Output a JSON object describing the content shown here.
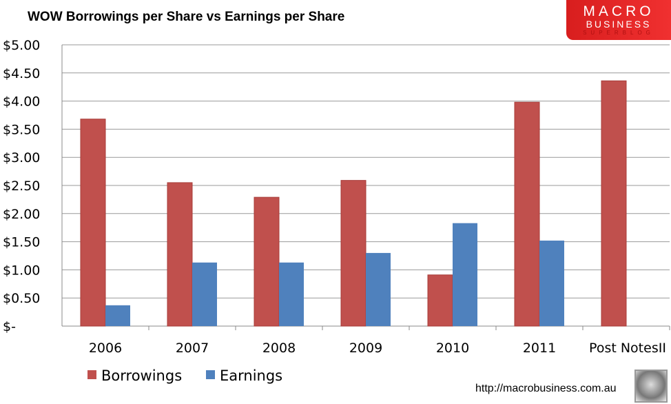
{
  "chart_data": {
    "type": "bar",
    "title": "WOW Borrowings per Share vs  Earnings per Share",
    "categories": [
      "2006",
      "2007",
      "2008",
      "2009",
      "2010",
      "2011",
      "Post NotesII"
    ],
    "series": [
      {
        "name": "Borrowings",
        "color": "#c0504d",
        "values": [
          3.68,
          2.55,
          2.29,
          2.59,
          0.91,
          3.98,
          4.36
        ]
      },
      {
        "name": "Earnings",
        "color": "#4f81bd",
        "values": [
          0.37,
          1.13,
          1.13,
          1.3,
          1.83,
          1.52,
          null
        ]
      }
    ],
    "ylim": [
      0,
      5
    ],
    "yticks": [
      0,
      0.5,
      1,
      1.5,
      2,
      2.5,
      3,
      3.5,
      4,
      4.5,
      5
    ],
    "ytick_labels": [
      "$-",
      "$0.50",
      "$1.00",
      "$1.50",
      "$2.00",
      "$2.50",
      "$3.00",
      "$3.50",
      "$4.00",
      "$4.50",
      "$5.00"
    ],
    "grid": true,
    "legend": "bottom-left",
    "xlabel": "",
    "ylabel": ""
  },
  "logo": {
    "line1": "MACRO",
    "line2": "BUSINESS",
    "line3": "SUPERBLOG"
  },
  "footer": {
    "url": "http://macrobusiness.com.au"
  }
}
